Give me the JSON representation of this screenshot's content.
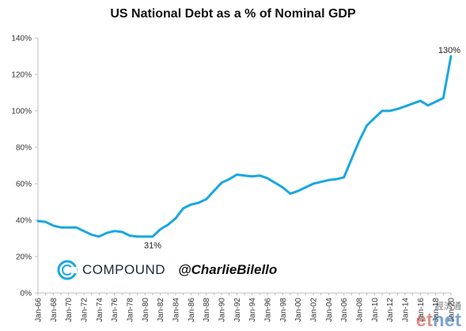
{
  "chart_data": {
    "type": "line",
    "title": "US National Debt as a % of Nominal GDP",
    "xlabel": "",
    "ylabel": "",
    "ylim": [
      0,
      140
    ],
    "y_ticks": [
      "0%",
      "20%",
      "40%",
      "60%",
      "80%",
      "100%",
      "120%",
      "140%"
    ],
    "x_ticks": [
      "Jan-66",
      "Jan-68",
      "Jan-70",
      "Jan-72",
      "Jan-74",
      "Jan-76",
      "Jan-78",
      "Jan-80",
      "Jan-82",
      "Jan-84",
      "Jan-86",
      "Jan-88",
      "Jan-90",
      "Jan-92",
      "Jan-94",
      "Jan-96",
      "Jan-98",
      "Jan-00",
      "Jan-02",
      "Jan-04",
      "Jan-06",
      "Jan-08",
      "Jan-10",
      "Jan-12",
      "Jan-14",
      "Jan-16",
      "Jan-18",
      "Jan-20"
    ],
    "grid": false,
    "series": [
      {
        "color": "#1aa7e0",
        "x": [
          1966,
          1967,
          1968,
          1969,
          1970,
          1971,
          1972,
          1973,
          1974,
          1975,
          1976,
          1977,
          1978,
          1979,
          1980,
          1981,
          1982,
          1983,
          1984,
          1985,
          1986,
          1987,
          1988,
          1989,
          1990,
          1991,
          1992,
          1993,
          1994,
          1995,
          1996,
          1997,
          1998,
          1999,
          2000,
          2001,
          2002,
          2003,
          2004,
          2005,
          2006,
          2007,
          2008,
          2009,
          2010,
          2011,
          2012,
          2013,
          2014,
          2015,
          2016,
          2017,
          2018,
          2019,
          2020
        ],
        "y": [
          39.5,
          39,
          37,
          36,
          36,
          36,
          34,
          32,
          31,
          33,
          34,
          33.5,
          31.5,
          31,
          31,
          31,
          35,
          37.5,
          41,
          46.5,
          48.5,
          49.5,
          51.5,
          56,
          60.5,
          62.5,
          65,
          64.5,
          64,
          64.5,
          63,
          60.5,
          58,
          54.5,
          56,
          58,
          60,
          61,
          62,
          62.5,
          63.5,
          73.5,
          83.5,
          92,
          96,
          100,
          100,
          101,
          102.5,
          104,
          105.5,
          103,
          105,
          107,
          130
        ]
      }
    ],
    "annotations": [
      {
        "text": "31%",
        "x": 1981,
        "y": 31
      },
      {
        "text": "130%",
        "x": 2020,
        "y": 130
      }
    ]
  },
  "branding": {
    "company": "COMPOUND",
    "handle": "@CharlieBilello",
    "logo_icon": "compound-logo-icon"
  },
  "watermark": {
    "text_cn": "經濟通",
    "logo_part1": "et",
    "logo_part2": "net"
  }
}
